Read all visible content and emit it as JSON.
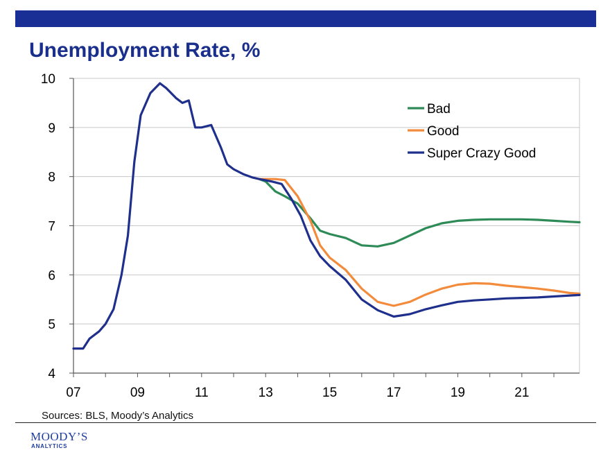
{
  "header": {
    "bar_color": "#1a2f96"
  },
  "chart_data": {
    "type": "line",
    "title": "Unemployment Rate, %",
    "xlabel": "",
    "ylabel": "",
    "xlim": [
      2007,
      2022.8
    ],
    "ylim": [
      4,
      10
    ],
    "xticks": [
      {
        "value": 2007,
        "label": "07"
      },
      {
        "value": 2009,
        "label": "09"
      },
      {
        "value": 2011,
        "label": "11"
      },
      {
        "value": 2013,
        "label": "13"
      },
      {
        "value": 2015,
        "label": "15"
      },
      {
        "value": 2017,
        "label": "17"
      },
      {
        "value": 2019,
        "label": "19"
      },
      {
        "value": 2021,
        "label": "21"
      }
    ],
    "yticks": [
      {
        "value": 4,
        "label": "4"
      },
      {
        "value": 5,
        "label": "5"
      },
      {
        "value": 6,
        "label": "6"
      },
      {
        "value": 7,
        "label": "7"
      },
      {
        "value": 8,
        "label": "8"
      },
      {
        "value": 9,
        "label": "9"
      },
      {
        "value": 10,
        "label": "10"
      }
    ],
    "grid": true,
    "legend_position": "top-right",
    "series": [
      {
        "name": "Bad",
        "color": "#2e8b57",
        "points": [
          [
            2012.8,
            7.95
          ],
          [
            2013.0,
            7.9
          ],
          [
            2013.3,
            7.7
          ],
          [
            2013.6,
            7.6
          ],
          [
            2014.0,
            7.45
          ],
          [
            2014.4,
            7.15
          ],
          [
            2014.7,
            6.9
          ],
          [
            2015.0,
            6.83
          ],
          [
            2015.5,
            6.75
          ],
          [
            2016.0,
            6.6
          ],
          [
            2016.5,
            6.58
          ],
          [
            2017.0,
            6.65
          ],
          [
            2017.5,
            6.8
          ],
          [
            2018.0,
            6.95
          ],
          [
            2018.5,
            7.05
          ],
          [
            2019.0,
            7.1
          ],
          [
            2019.5,
            7.12
          ],
          [
            2020.0,
            7.13
          ],
          [
            2020.5,
            7.13
          ],
          [
            2021.0,
            7.13
          ],
          [
            2021.5,
            7.12
          ],
          [
            2022.0,
            7.1
          ],
          [
            2022.5,
            7.08
          ],
          [
            2022.8,
            7.07
          ]
        ]
      },
      {
        "name": "Good",
        "color": "#f28c3c",
        "points": [
          [
            2012.8,
            7.95
          ],
          [
            2013.0,
            7.95
          ],
          [
            2013.3,
            7.95
          ],
          [
            2013.6,
            7.93
          ],
          [
            2014.0,
            7.6
          ],
          [
            2014.4,
            7.1
          ],
          [
            2014.7,
            6.6
          ],
          [
            2015.0,
            6.35
          ],
          [
            2015.5,
            6.1
          ],
          [
            2016.0,
            5.72
          ],
          [
            2016.5,
            5.45
          ],
          [
            2017.0,
            5.37
          ],
          [
            2017.5,
            5.45
          ],
          [
            2018.0,
            5.6
          ],
          [
            2018.5,
            5.72
          ],
          [
            2019.0,
            5.8
          ],
          [
            2019.5,
            5.83
          ],
          [
            2020.0,
            5.82
          ],
          [
            2020.5,
            5.78
          ],
          [
            2021.0,
            5.75
          ],
          [
            2021.5,
            5.72
          ],
          [
            2022.0,
            5.68
          ],
          [
            2022.5,
            5.63
          ],
          [
            2022.8,
            5.62
          ]
        ]
      },
      {
        "name": "Super Crazy Good",
        "color": "#1f2f8c",
        "points": [
          [
            2007.0,
            4.5
          ],
          [
            2007.3,
            4.5
          ],
          [
            2007.5,
            4.7
          ],
          [
            2007.8,
            4.85
          ],
          [
            2008.0,
            5.0
          ],
          [
            2008.25,
            5.3
          ],
          [
            2008.5,
            6.0
          ],
          [
            2008.7,
            6.8
          ],
          [
            2008.9,
            8.3
          ],
          [
            2009.1,
            9.25
          ],
          [
            2009.4,
            9.7
          ],
          [
            2009.7,
            9.9
          ],
          [
            2009.9,
            9.8
          ],
          [
            2010.2,
            9.6
          ],
          [
            2010.4,
            9.5
          ],
          [
            2010.6,
            9.55
          ],
          [
            2010.8,
            9.0
          ],
          [
            2011.0,
            9.0
          ],
          [
            2011.3,
            9.05
          ],
          [
            2011.6,
            8.6
          ],
          [
            2011.8,
            8.25
          ],
          [
            2012.0,
            8.15
          ],
          [
            2012.3,
            8.05
          ],
          [
            2012.6,
            7.98
          ],
          [
            2012.8,
            7.95
          ],
          [
            2013.2,
            7.9
          ],
          [
            2013.5,
            7.85
          ],
          [
            2013.8,
            7.55
          ],
          [
            2014.1,
            7.2
          ],
          [
            2014.4,
            6.7
          ],
          [
            2014.7,
            6.38
          ],
          [
            2015.0,
            6.18
          ],
          [
            2015.5,
            5.9
          ],
          [
            2016.0,
            5.5
          ],
          [
            2016.5,
            5.28
          ],
          [
            2017.0,
            5.15
          ],
          [
            2017.5,
            5.2
          ],
          [
            2018.0,
            5.3
          ],
          [
            2018.5,
            5.38
          ],
          [
            2019.0,
            5.45
          ],
          [
            2019.5,
            5.48
          ],
          [
            2020.0,
            5.5
          ],
          [
            2020.5,
            5.52
          ],
          [
            2021.0,
            5.53
          ],
          [
            2021.5,
            5.54
          ],
          [
            2022.0,
            5.56
          ],
          [
            2022.5,
            5.58
          ],
          [
            2022.8,
            5.59
          ]
        ]
      }
    ]
  },
  "footer": {
    "sources": "Sources: BLS, Moody’s Analytics",
    "logo_main": "MOODY’S",
    "logo_sub": "ANALYTICS"
  }
}
